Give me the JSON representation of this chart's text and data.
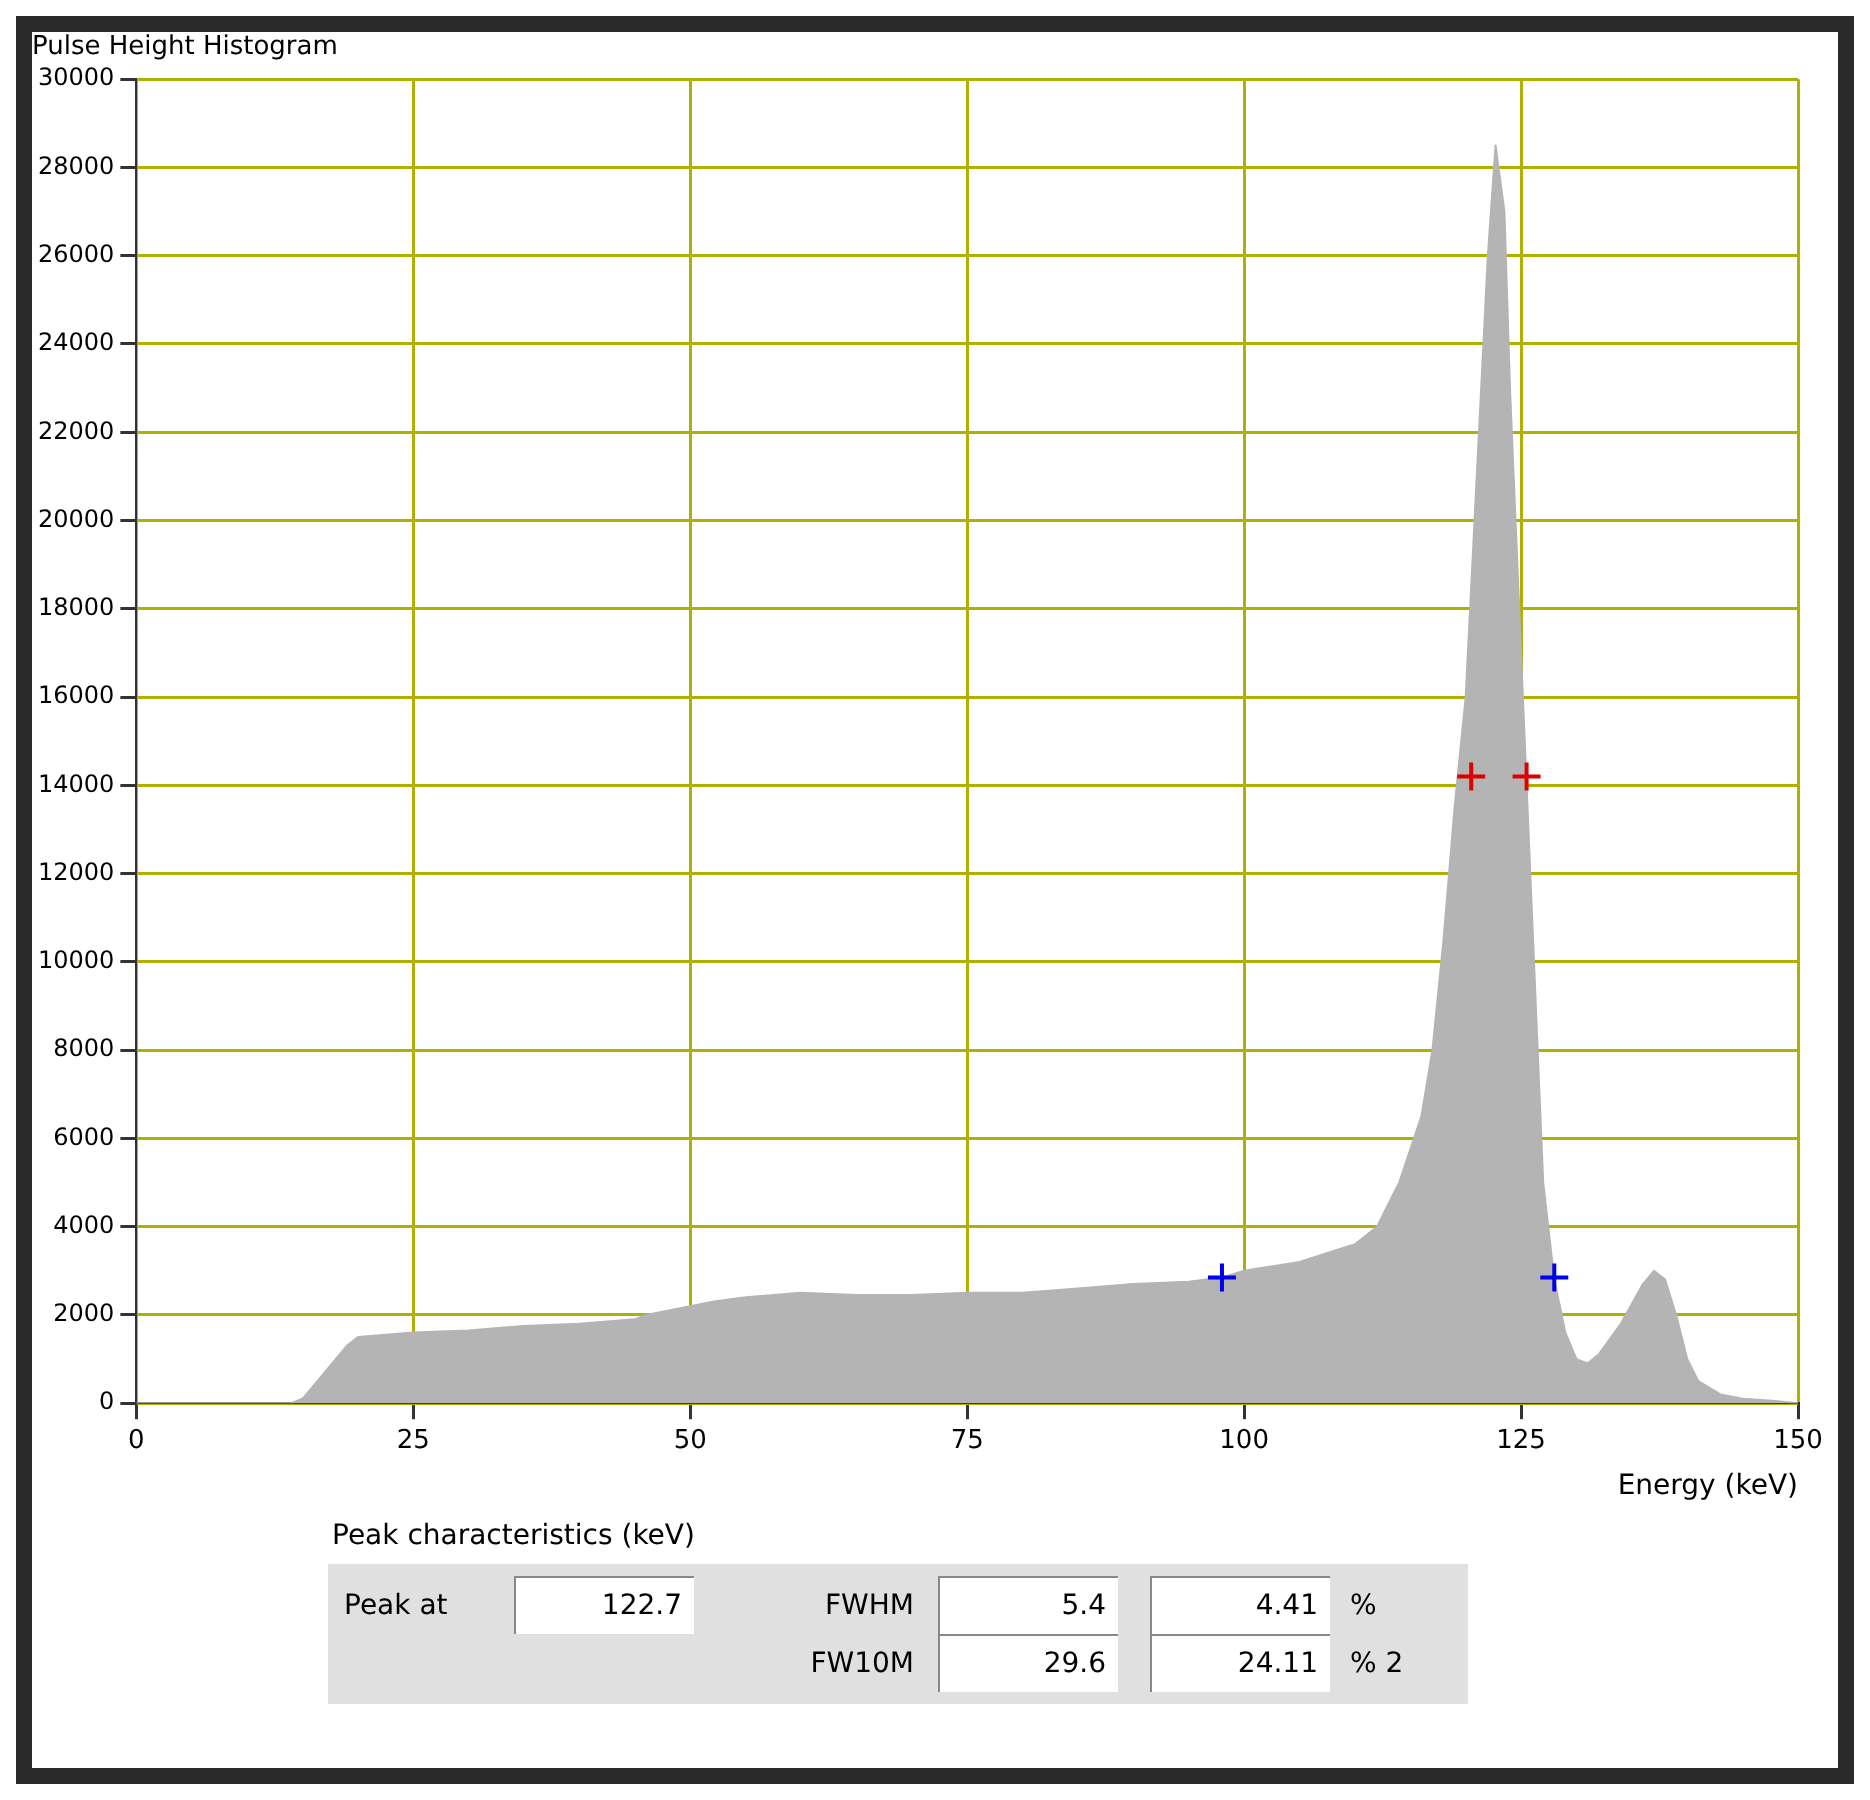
{
  "chart_data": {
    "type": "area",
    "title": "Pulse Height Histogram",
    "xlabel": "Energy (keV)",
    "series": [
      {
        "color": "#b4b4b4",
        "x": [
          0,
          14,
          15,
          17,
          19,
          20,
          25,
          30,
          35,
          40,
          45,
          46,
          50,
          52,
          55,
          60,
          65,
          70,
          75,
          80,
          85,
          90,
          95,
          98,
          100,
          105,
          110,
          112,
          114,
          116,
          117,
          118,
          119,
          120,
          121,
          122,
          122.7,
          123.5,
          124,
          125,
          126,
          127,
          128,
          129,
          130,
          131,
          132,
          134,
          136,
          137,
          138,
          139,
          140,
          141,
          143,
          145,
          148,
          150
        ],
        "values": [
          0,
          0,
          100,
          700,
          1300,
          1500,
          1600,
          1650,
          1750,
          1800,
          1900,
          2000,
          2200,
          2300,
          2400,
          2500,
          2450,
          2450,
          2500,
          2500,
          2600,
          2700,
          2750,
          2850,
          3000,
          3200,
          3600,
          4000,
          5000,
          6500,
          8000,
          10500,
          13500,
          16000,
          21000,
          26000,
          28500,
          27000,
          23000,
          17000,
          11000,
          5000,
          2800,
          1600,
          1000,
          900,
          1100,
          1800,
          2700,
          3000,
          2800,
          2000,
          1000,
          500,
          200,
          100,
          50,
          0
        ]
      },
      {
        "type": "scatter",
        "color": "#dd0000",
        "marker": "cross",
        "x": [
          120.5,
          125.5
        ],
        "values": [
          14200,
          14200
        ]
      },
      {
        "type": "scatter",
        "color": "#0000ee",
        "marker": "cross",
        "x": [
          98,
          128
        ],
        "values": [
          2850,
          2850
        ]
      }
    ],
    "xlim": [
      0,
      150
    ],
    "xticks": [
      0,
      25,
      50,
      75,
      100,
      125,
      150
    ],
    "ylim": [
      0,
      30000
    ],
    "yticks": [
      0,
      2000,
      4000,
      6000,
      8000,
      10000,
      12000,
      14000,
      16000,
      18000,
      20000,
      22000,
      24000,
      26000,
      28000,
      30000
    ],
    "grid": true,
    "legend": false,
    "annotations": [
      "Peak characteristics (keV)",
      "Peak at",
      "122.7",
      "FWHM",
      "5.4",
      "4.41",
      "%",
      "FW10M",
      "29.6",
      "24.11",
      "% 2"
    ]
  }
}
